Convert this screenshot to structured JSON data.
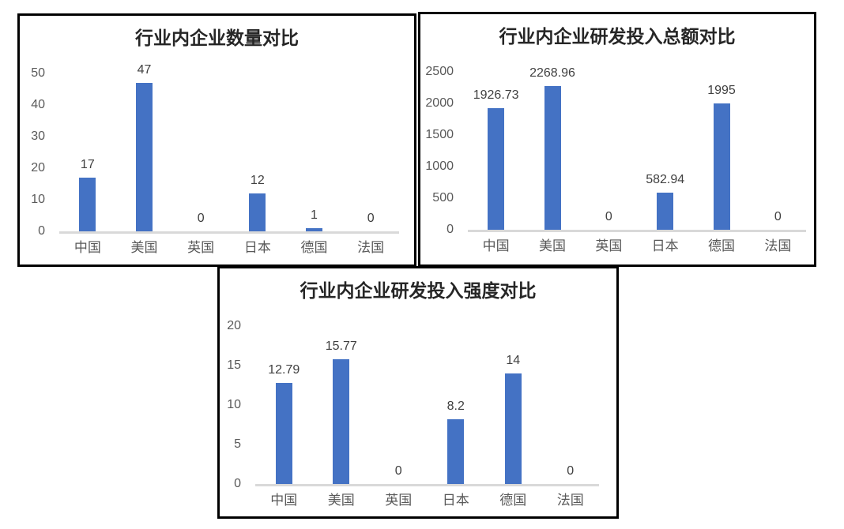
{
  "colors": {
    "bar": "#4472C4",
    "axis_line": "#D9D9D9",
    "tick_label": "#595959",
    "category_label": "#595959",
    "data_label": "#404040",
    "title": "#262626",
    "panel_border": "#000000"
  },
  "chart_data": [
    {
      "type": "bar",
      "title": "行业内企业数量对比",
      "categories": [
        "中国",
        "美国",
        "英国",
        "日本",
        "德国",
        "法国"
      ],
      "values": [
        17,
        47,
        0,
        12,
        1,
        0
      ],
      "data_labels": [
        "17",
        "47",
        "0",
        "12",
        "1",
        "0"
      ],
      "yticks": [
        "0",
        "10",
        "20",
        "30",
        "40",
        "50"
      ],
      "ylim": [
        0,
        50
      ],
      "xlabel": "",
      "ylabel": "",
      "grid": false,
      "legend": false,
      "bar_color": "#4472C4"
    },
    {
      "type": "bar",
      "title": "行业内企业研发投入总额对比",
      "categories": [
        "中国",
        "美国",
        "英国",
        "日本",
        "德国",
        "法国"
      ],
      "values": [
        1926.73,
        2268.96,
        0,
        582.94,
        1995,
        0
      ],
      "data_labels": [
        "1926.73",
        "2268.96",
        "0",
        "582.94",
        "1995",
        "0"
      ],
      "yticks": [
        "0",
        "500",
        "1000",
        "1500",
        "2000",
        "2500"
      ],
      "ylim": [
        0,
        2500
      ],
      "xlabel": "",
      "ylabel": "",
      "grid": false,
      "legend": false,
      "bar_color": "#4472C4"
    },
    {
      "type": "bar",
      "title": "行业内企业研发投入强度对比",
      "categories": [
        "中国",
        "美国",
        "英国",
        "日本",
        "德国",
        "法国"
      ],
      "values": [
        12.79,
        15.77,
        0,
        8.2,
        14,
        0
      ],
      "data_labels": [
        "12.79",
        "15.77",
        "0",
        "8.2",
        "14",
        "0"
      ],
      "yticks": [
        "0",
        "5",
        "10",
        "15",
        "20"
      ],
      "ylim": [
        0,
        20
      ],
      "xlabel": "",
      "ylabel": "",
      "grid": false,
      "legend": false,
      "bar_color": "#4472C4"
    }
  ]
}
